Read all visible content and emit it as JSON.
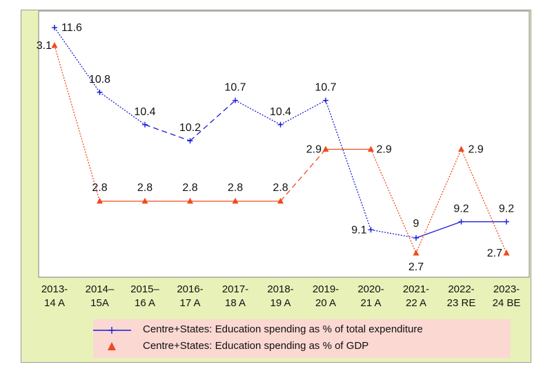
{
  "chart_data": {
    "type": "line",
    "categories": [
      "2013-\n14 A",
      "2014–\n15A",
      "2015–\n16 A",
      "2016-\n17 A",
      "2017-\n18 A",
      "2018-\n19 A",
      "2019-\n20 A",
      "2020-\n21 A",
      "2021-\n22 A",
      "2022-\n23 RE",
      "2023-\n24 BE"
    ],
    "series": [
      {
        "name": "Centre+States: Education spending as % of total expenditure",
        "values": [
          11.6,
          10.8,
          10.4,
          10.2,
          10.7,
          10.4,
          10.7,
          9.1,
          9,
          9.2,
          9.2
        ],
        "labels": [
          "11.6",
          "10.8",
          "10.4",
          "10.2",
          "10.7",
          "10.4",
          "10.7",
          "9.1",
          "9",
          "9.2",
          "9.2"
        ],
        "color": "#1a1ad8",
        "marker": "plus"
      },
      {
        "name": "Centre+States: Education spending as % of GDP",
        "values": [
          3.1,
          2.8,
          2.8,
          2.8,
          2.8,
          2.8,
          2.9,
          2.9,
          2.7,
          2.9,
          2.7
        ],
        "labels": [
          "3.1",
          "2.8",
          "2.8",
          "2.8",
          "2.8",
          "2.8",
          "2.9",
          "2.9",
          "2.7",
          "2.9",
          "2.7"
        ],
        "color": "#f04a1e",
        "marker": "triangle"
      }
    ],
    "grid": false,
    "legend_position": "bottom"
  }
}
